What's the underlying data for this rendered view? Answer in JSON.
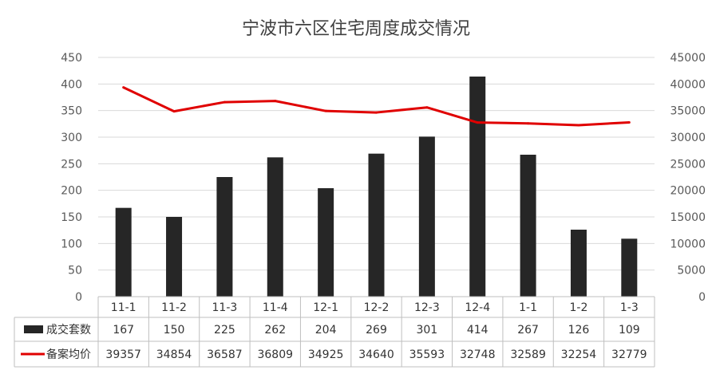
{
  "chart_data": {
    "type": "bar",
    "title": "宁波市六区住宅周度成交情况",
    "categories": [
      "11-1",
      "11-2",
      "11-3",
      "11-4",
      "12-1",
      "12-2",
      "12-3",
      "12-4",
      "1-1",
      "1-2",
      "1-3"
    ],
    "series": [
      {
        "name": "成交套数",
        "type": "bar",
        "axis": "left",
        "color": "#262626",
        "values": [
          167,
          150,
          225,
          262,
          204,
          269,
          301,
          414,
          267,
          126,
          109
        ]
      },
      {
        "name": "备案均价",
        "type": "line",
        "axis": "right",
        "color": "#e00000",
        "values": [
          39357,
          34854,
          36587,
          36809,
          34925,
          34640,
          35593,
          32748,
          32589,
          32254,
          32779
        ]
      }
    ],
    "ylim_left": [
      0,
      450
    ],
    "yticks_left": [
      "0",
      "50",
      "100",
      "150",
      "200",
      "250",
      "300",
      "350",
      "400",
      "450"
    ],
    "ylim_right": [
      0,
      45000
    ],
    "yticks_right": [
      "0",
      "5000",
      "10000",
      "15000",
      "20000",
      "25000",
      "30000",
      "35000",
      "40000",
      "45000"
    ],
    "grid": true,
    "legend": "data-table"
  }
}
